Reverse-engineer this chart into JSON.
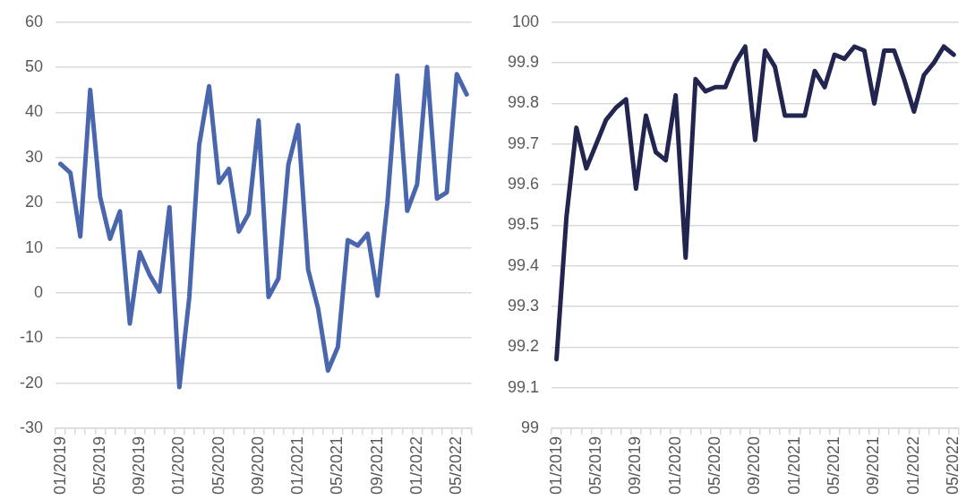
{
  "chart_data": [
    {
      "type": "line",
      "categories": [
        "01/2019",
        null,
        null,
        null,
        "05/2019",
        null,
        null,
        null,
        "09/2019",
        null,
        null,
        null,
        "01/2020",
        null,
        null,
        null,
        "05/2020",
        null,
        null,
        null,
        "09/2020",
        null,
        null,
        null,
        "01/2021",
        null,
        null,
        null,
        "05/2021",
        null,
        null,
        null,
        "09/2021",
        null,
        null,
        null,
        "01/2022",
        null,
        null,
        null,
        "05/2022",
        null
      ],
      "series": [
        {
          "color": "#4a66ac",
          "values": [
            28.6,
            26.6,
            12.5,
            45,
            21.3,
            12,
            18.1,
            -6.8,
            9,
            4,
            0.3,
            19,
            -20.9,
            -1,
            32.8,
            45.8,
            24.4,
            27.5,
            13.6,
            17.6,
            38.2,
            -0.9,
            3.2,
            28.4,
            37.2,
            5.1,
            -3.4,
            -17.2,
            -12,
            11.7,
            10.5,
            13.1,
            -0.6,
            20,
            48.2,
            18.2,
            24.1,
            50.1,
            20.9,
            22.3,
            48.5,
            44
          ]
        }
      ],
      "ylim": [
        -30,
        60
      ],
      "yticks": [
        -30,
        -20,
        -10,
        0,
        10,
        20,
        30,
        40,
        50,
        60
      ],
      "grid": "y",
      "marker": "none"
    },
    {
      "type": "line",
      "categories": [
        "01/2019",
        null,
        null,
        null,
        "05/2019",
        null,
        null,
        null,
        "09/2019",
        null,
        null,
        null,
        "01/2020",
        null,
        null,
        null,
        "05/2020",
        null,
        null,
        null,
        "09/2020",
        null,
        null,
        null,
        "01/2021",
        null,
        null,
        null,
        "05/2021",
        null,
        null,
        null,
        "09/2021",
        null,
        null,
        null,
        "01/2022",
        null,
        null,
        null,
        "05/2022"
      ],
      "series": [
        {
          "color": "#22254f",
          "values": [
            99.17,
            99.52,
            99.74,
            99.64,
            99.7,
            99.76,
            99.79,
            99.81,
            99.59,
            99.77,
            99.68,
            99.66,
            99.82,
            99.42,
            99.86,
            99.83,
            99.84,
            99.84,
            99.9,
            99.94,
            99.71,
            99.93,
            99.89,
            99.77,
            99.77,
            99.77,
            99.88,
            99.84,
            99.92,
            99.91,
            99.94,
            99.93,
            99.8,
            99.93,
            99.93,
            99.86,
            99.78,
            99.87,
            99.9,
            99.94,
            99.92
          ]
        }
      ],
      "ylim": [
        99,
        100
      ],
      "yticks": [
        99,
        99.1,
        99.2,
        99.3,
        99.4,
        99.5,
        99.6,
        99.7,
        99.8,
        99.9,
        100
      ],
      "grid": "y",
      "marker": "none"
    }
  ]
}
